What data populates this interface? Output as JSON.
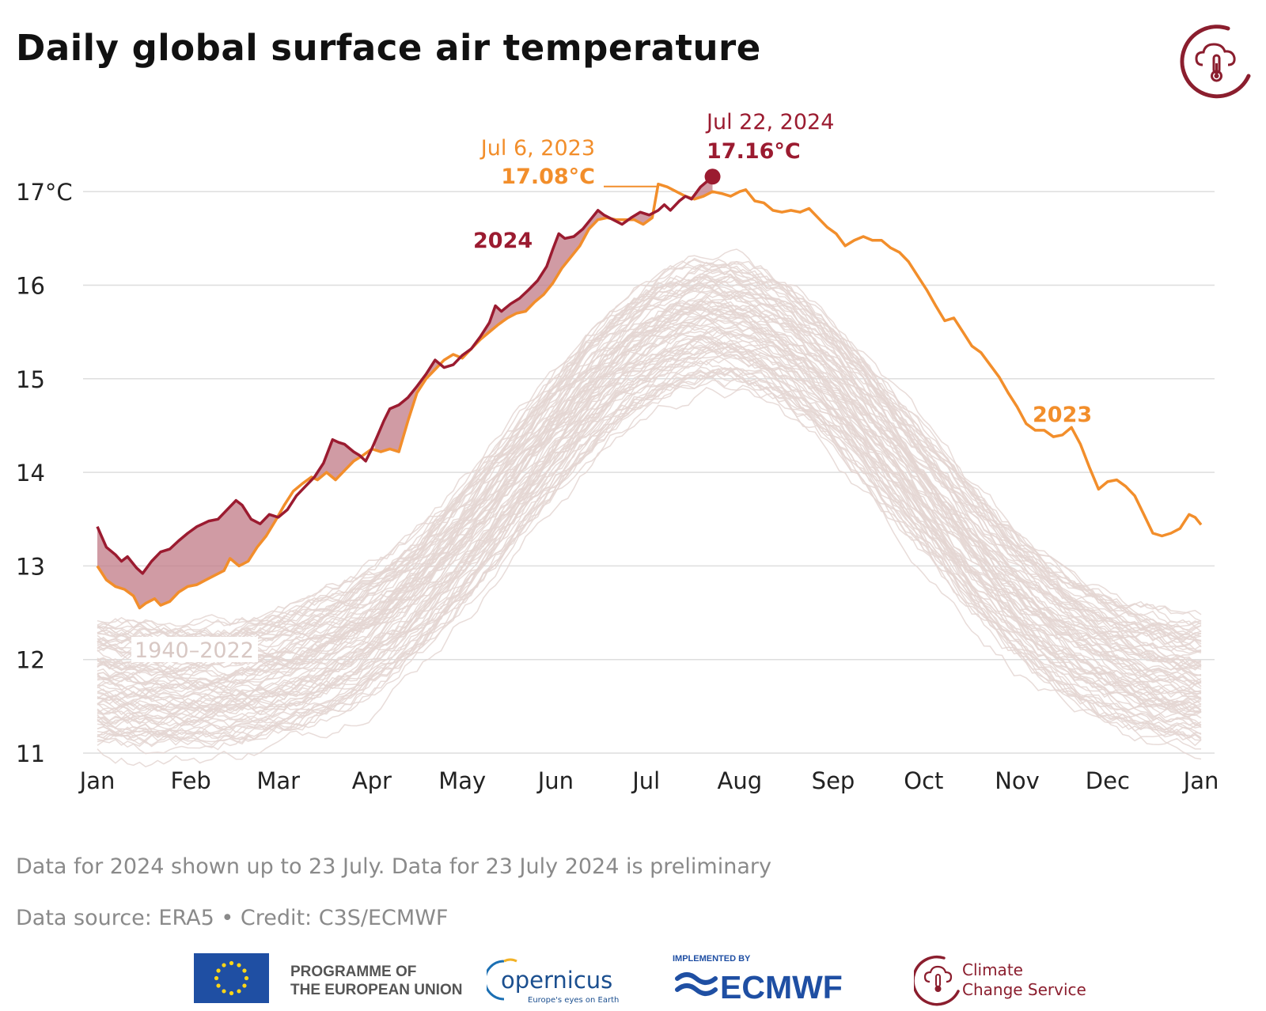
{
  "chart_data": {
    "type": "line",
    "title": "Daily global surface air temperature",
    "ylabel": "",
    "xlabel": "",
    "ylim": [
      11,
      17.5
    ],
    "yticks": [
      11,
      12,
      13,
      14,
      15,
      16,
      17
    ],
    "ytick_labels": [
      "11",
      "12",
      "13",
      "14",
      "15",
      "16",
      "17°C"
    ],
    "x_ticks": [
      "Jan",
      "Feb",
      "Mar",
      "Apr",
      "May",
      "Jun",
      "Jul",
      "Aug",
      "Sep",
      "Oct",
      "Nov",
      "Dec",
      "Jan"
    ],
    "x_tick_days": [
      0,
      31,
      60,
      91,
      121,
      152,
      182,
      213,
      244,
      274,
      305,
      335,
      366
    ],
    "grid": true,
    "series": [
      {
        "name": "2024",
        "color": "#9b1b30",
        "points": [
          [
            0,
            13.42
          ],
          [
            3,
            13.2
          ],
          [
            6,
            13.12
          ],
          [
            8,
            13.05
          ],
          [
            10,
            13.1
          ],
          [
            13,
            12.98
          ],
          [
            15,
            12.92
          ],
          [
            18,
            13.05
          ],
          [
            21,
            13.15
          ],
          [
            24,
            13.18
          ],
          [
            27,
            13.27
          ],
          [
            30,
            13.35
          ],
          [
            33,
            13.42
          ],
          [
            37,
            13.48
          ],
          [
            40,
            13.5
          ],
          [
            43,
            13.6
          ],
          [
            46,
            13.7
          ],
          [
            48,
            13.65
          ],
          [
            51,
            13.5
          ],
          [
            54,
            13.45
          ],
          [
            57,
            13.55
          ],
          [
            60,
            13.52
          ],
          [
            63,
            13.6
          ],
          [
            66,
            13.75
          ],
          [
            69,
            13.85
          ],
          [
            72,
            13.95
          ],
          [
            75,
            14.1
          ],
          [
            78,
            14.35
          ],
          [
            80,
            14.32
          ],
          [
            82,
            14.3
          ],
          [
            85,
            14.22
          ],
          [
            87,
            14.18
          ],
          [
            89,
            14.12
          ],
          [
            91,
            14.25
          ],
          [
            93,
            14.4
          ],
          [
            95,
            14.55
          ],
          [
            97,
            14.68
          ],
          [
            100,
            14.72
          ],
          [
            103,
            14.8
          ],
          [
            106,
            14.92
          ],
          [
            109,
            15.05
          ],
          [
            112,
            15.2
          ],
          [
            115,
            15.12
          ],
          [
            118,
            15.15
          ],
          [
            121,
            15.25
          ],
          [
            124,
            15.32
          ],
          [
            127,
            15.45
          ],
          [
            130,
            15.6
          ],
          [
            132,
            15.78
          ],
          [
            134,
            15.72
          ],
          [
            137,
            15.8
          ],
          [
            140,
            15.86
          ],
          [
            143,
            15.95
          ],
          [
            146,
            16.05
          ],
          [
            149,
            16.2
          ],
          [
            151,
            16.38
          ],
          [
            153,
            16.55
          ],
          [
            155,
            16.5
          ],
          [
            158,
            16.52
          ],
          [
            161,
            16.6
          ],
          [
            164,
            16.72
          ],
          [
            166,
            16.8
          ],
          [
            168,
            16.75
          ],
          [
            171,
            16.7
          ],
          [
            174,
            16.65
          ],
          [
            177,
            16.72
          ],
          [
            180,
            16.78
          ],
          [
            183,
            16.75
          ],
          [
            186,
            16.8
          ],
          [
            188,
            16.86
          ],
          [
            190,
            16.8
          ],
          [
            193,
            16.9
          ],
          [
            195,
            16.95
          ],
          [
            197,
            16.92
          ],
          [
            200,
            17.05
          ],
          [
            204,
            17.16
          ]
        ]
      },
      {
        "name": "2023",
        "color": "#f28e2b",
        "points": [
          [
            0,
            13.0
          ],
          [
            3,
            12.85
          ],
          [
            6,
            12.78
          ],
          [
            9,
            12.75
          ],
          [
            12,
            12.68
          ],
          [
            14,
            12.55
          ],
          [
            16,
            12.6
          ],
          [
            19,
            12.65
          ],
          [
            21,
            12.58
          ],
          [
            24,
            12.62
          ],
          [
            27,
            12.72
          ],
          [
            30,
            12.78
          ],
          [
            33,
            12.8
          ],
          [
            36,
            12.85
          ],
          [
            39,
            12.9
          ],
          [
            42,
            12.95
          ],
          [
            44,
            13.08
          ],
          [
            47,
            13.0
          ],
          [
            50,
            13.05
          ],
          [
            53,
            13.2
          ],
          [
            56,
            13.32
          ],
          [
            59,
            13.48
          ],
          [
            62,
            13.65
          ],
          [
            65,
            13.8
          ],
          [
            68,
            13.88
          ],
          [
            71,
            13.95
          ],
          [
            73,
            13.92
          ],
          [
            76,
            14.0
          ],
          [
            79,
            13.92
          ],
          [
            82,
            14.02
          ],
          [
            85,
            14.12
          ],
          [
            88,
            14.18
          ],
          [
            91,
            14.25
          ],
          [
            94,
            14.22
          ],
          [
            97,
            14.25
          ],
          [
            100,
            14.22
          ],
          [
            103,
            14.55
          ],
          [
            106,
            14.85
          ],
          [
            109,
            15.0
          ],
          [
            112,
            15.1
          ],
          [
            115,
            15.2
          ],
          [
            118,
            15.26
          ],
          [
            121,
            15.22
          ],
          [
            124,
            15.32
          ],
          [
            127,
            15.42
          ],
          [
            130,
            15.5
          ],
          [
            133,
            15.58
          ],
          [
            136,
            15.65
          ],
          [
            139,
            15.7
          ],
          [
            142,
            15.72
          ],
          [
            145,
            15.82
          ],
          [
            148,
            15.9
          ],
          [
            151,
            16.02
          ],
          [
            154,
            16.18
          ],
          [
            157,
            16.3
          ],
          [
            160,
            16.42
          ],
          [
            163,
            16.6
          ],
          [
            166,
            16.7
          ],
          [
            169,
            16.72
          ],
          [
            172,
            16.7
          ],
          [
            175,
            16.7
          ],
          [
            178,
            16.7
          ],
          [
            181,
            16.65
          ],
          [
            184,
            16.72
          ],
          [
            186,
            17.08
          ],
          [
            189,
            17.05
          ],
          [
            192,
            17.0
          ],
          [
            195,
            16.95
          ],
          [
            198,
            16.92
          ],
          [
            201,
            16.95
          ],
          [
            204,
            17.0
          ],
          [
            207,
            16.98
          ],
          [
            210,
            16.95
          ],
          [
            213,
            17.0
          ],
          [
            215,
            17.02
          ],
          [
            218,
            16.9
          ],
          [
            221,
            16.88
          ],
          [
            224,
            16.8
          ],
          [
            227,
            16.78
          ],
          [
            230,
            16.8
          ],
          [
            233,
            16.78
          ],
          [
            236,
            16.82
          ],
          [
            239,
            16.72
          ],
          [
            242,
            16.62
          ],
          [
            245,
            16.55
          ],
          [
            248,
            16.42
          ],
          [
            251,
            16.48
          ],
          [
            254,
            16.52
          ],
          [
            257,
            16.48
          ],
          [
            260,
            16.48
          ],
          [
            263,
            16.4
          ],
          [
            266,
            16.35
          ],
          [
            269,
            16.25
          ],
          [
            272,
            16.1
          ],
          [
            275,
            15.95
          ],
          [
            278,
            15.78
          ],
          [
            281,
            15.62
          ],
          [
            284,
            15.65
          ],
          [
            287,
            15.5
          ],
          [
            290,
            15.35
          ],
          [
            293,
            15.28
          ],
          [
            296,
            15.15
          ],
          [
            299,
            15.02
          ],
          [
            302,
            14.85
          ],
          [
            305,
            14.7
          ],
          [
            308,
            14.52
          ],
          [
            311,
            14.45
          ],
          [
            314,
            14.45
          ],
          [
            317,
            14.38
          ],
          [
            320,
            14.4
          ],
          [
            323,
            14.48
          ],
          [
            326,
            14.3
          ],
          [
            329,
            14.05
          ],
          [
            332,
            13.82
          ],
          [
            335,
            13.9
          ],
          [
            338,
            13.92
          ],
          [
            341,
            13.85
          ],
          [
            344,
            13.75
          ],
          [
            347,
            13.55
          ],
          [
            350,
            13.35
          ],
          [
            353,
            13.32
          ],
          [
            356,
            13.35
          ],
          [
            359,
            13.4
          ],
          [
            362,
            13.55
          ],
          [
            364,
            13.52
          ],
          [
            366,
            13.44
          ]
        ]
      }
    ],
    "background_series": {
      "label": "1940–2022",
      "color": "#e4d6d2",
      "count": 83
    },
    "annotations": [
      {
        "date": "Jul 6, 2023",
        "value": "17.08°C",
        "color": "#f28e2b"
      },
      {
        "date": "Jul 22, 2024",
        "value": "17.16°C",
        "color": "#9b1b30"
      }
    ],
    "series_labels": [
      {
        "text": "2024",
        "color": "#9b1b30"
      },
      {
        "text": "2023",
        "color": "#f28e2b"
      }
    ]
  },
  "notes": {
    "line1": "Data for 2024 shown up to 23 July. Data for 23 July 2024 is preliminary",
    "line2": "Data source: ERA5 • Credit: C3S/ECMWF"
  },
  "footer": {
    "eu_line1": "PROGRAMME OF",
    "eu_line2": "THE EUROPEAN UNION",
    "copernicus_name": "opernicus",
    "copernicus_tagline": "Europe's eyes on Earth",
    "ecmwf_implemented": "IMPLEMENTED BY",
    "ecmwf_name": "ECMWF",
    "c3s_line1": "Climate",
    "c3s_line2": "Change Service"
  },
  "colors": {
    "accent_2024": "#9b1b30",
    "accent_2023": "#f28e2b",
    "history": "#e4d6d2",
    "fill_2024": "#c07a86",
    "c3s_brand": "#8b1e2e"
  }
}
